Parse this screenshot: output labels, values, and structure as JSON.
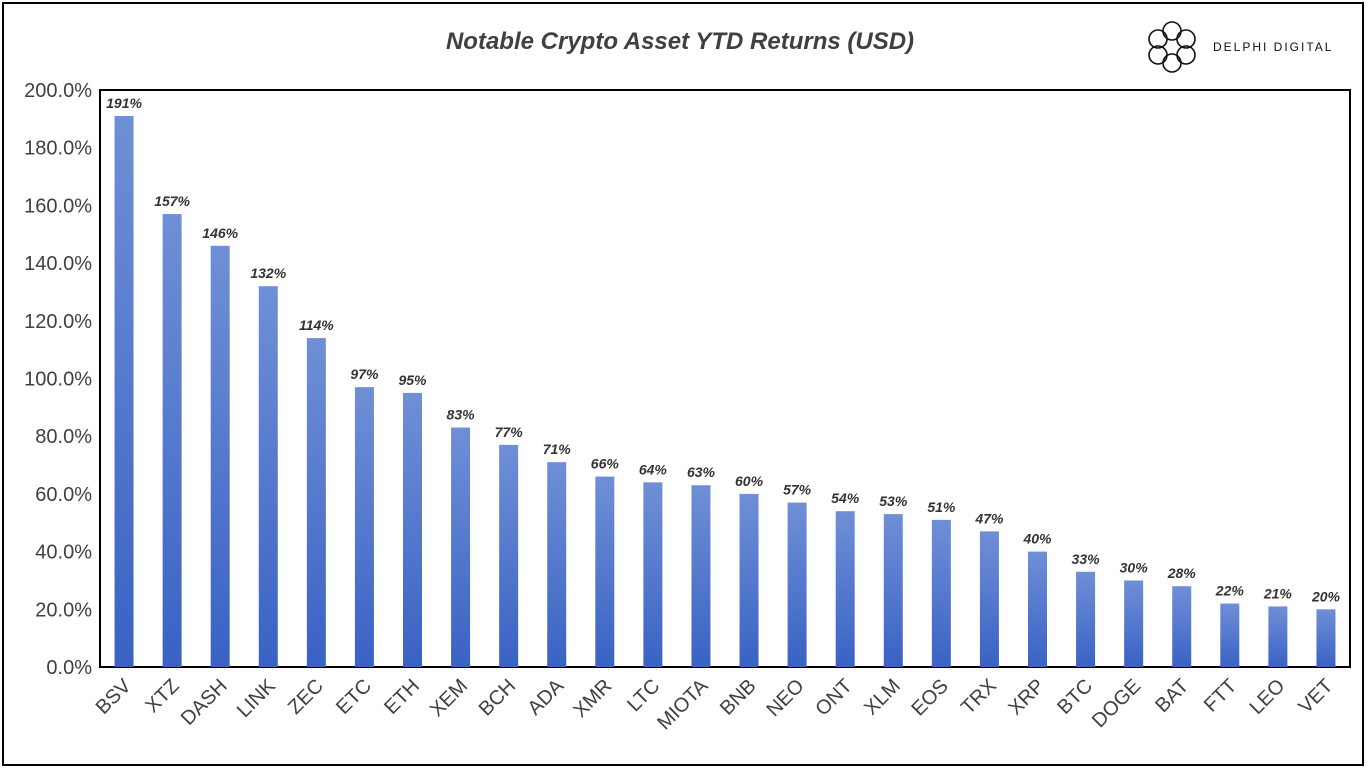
{
  "brand": {
    "name": "DELPHI DIGITAL",
    "logo_icon": "delphi-logo-icon"
  },
  "chart_data": {
    "type": "bar",
    "title": "Notable Crypto Asset YTD Returns (USD)",
    "xlabel": "",
    "ylabel": "",
    "ylim": [
      0,
      200
    ],
    "yticks": [
      "0.0%",
      "20.0%",
      "40.0%",
      "60.0%",
      "80.0%",
      "100.0%",
      "120.0%",
      "140.0%",
      "160.0%",
      "180.0%",
      "200.0%"
    ],
    "categories": [
      "BSV",
      "XTZ",
      "DASH",
      "LINK",
      "ZEC",
      "ETC",
      "ETH",
      "XEM",
      "BCH",
      "ADA",
      "XMR",
      "LTC",
      "MIOTA",
      "BNB",
      "NEO",
      "ONT",
      "XLM",
      "EOS",
      "TRX",
      "XRP",
      "BTC",
      "DOGE",
      "BAT",
      "FTT",
      "LEO",
      "VET"
    ],
    "values": [
      191,
      157,
      146,
      132,
      114,
      97,
      95,
      83,
      77,
      71,
      66,
      64,
      63,
      60,
      57,
      54,
      53,
      51,
      47,
      40,
      33,
      30,
      28,
      22,
      21,
      20
    ],
    "data_labels": [
      "191%",
      "157%",
      "146%",
      "132%",
      "114%",
      "97%",
      "95%",
      "83%",
      "77%",
      "71%",
      "66%",
      "64%",
      "63%",
      "60%",
      "57%",
      "54%",
      "53%",
      "51%",
      "47%",
      "40%",
      "33%",
      "30%",
      "28%",
      "22%",
      "21%",
      "20%"
    ],
    "grid": false,
    "bar_color_top": "#6f8fd6",
    "bar_color_bottom": "#3a62c4"
  }
}
